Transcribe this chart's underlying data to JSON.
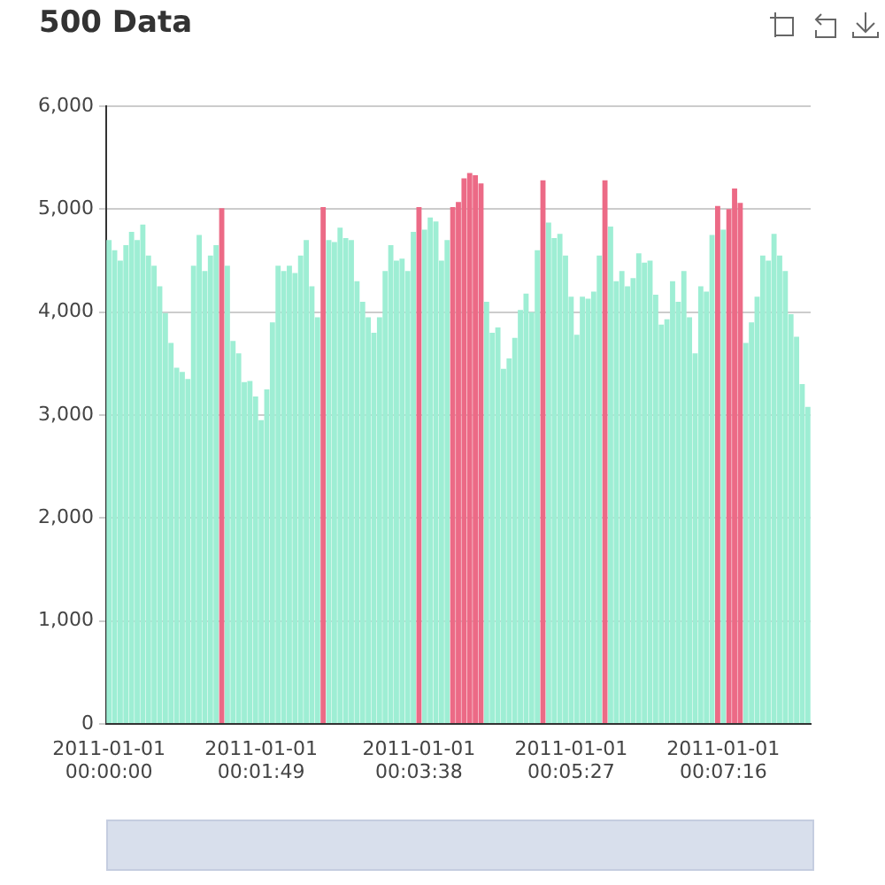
{
  "chart_data": {
    "type": "bar",
    "title": "500 Data",
    "categories": [
      "2011-01-01\n00:00:00",
      null,
      null,
      null,
      null,
      null,
      null,
      null,
      null,
      null,
      null,
      null,
      null,
      null,
      null,
      null,
      null,
      null,
      null,
      null,
      null,
      null,
      null,
      null,
      null,
      null,
      null,
      "2011-01-01\n00:01:49",
      null,
      null,
      null,
      null,
      null,
      null,
      null,
      null,
      null,
      null,
      null,
      null,
      null,
      null,
      null,
      null,
      null,
      null,
      null,
      null,
      null,
      null,
      null,
      null,
      null,
      null,
      null,
      "2011-01-01\n00:03:38",
      null,
      null,
      null,
      null,
      null,
      null,
      null,
      null,
      null,
      null,
      null,
      null,
      null,
      null,
      null,
      null,
      null,
      null,
      null,
      null,
      null,
      null,
      null,
      null,
      null,
      null,
      "2011-01-01\n00:05:27",
      null,
      null,
      null,
      null,
      null,
      null,
      null,
      null,
      null,
      null,
      null,
      null,
      null,
      null,
      null,
      null,
      null,
      null,
      null,
      null,
      null,
      null,
      null,
      null,
      null,
      null,
      "2011-01-01\n00:07:16",
      null,
      null,
      null,
      null,
      null,
      null,
      null,
      null,
      null,
      null,
      null,
      null,
      null,
      null,
      null
    ],
    "values": [
      4700,
      4600,
      4500,
      4650,
      4780,
      4700,
      4850,
      4550,
      4450,
      4250,
      3990,
      3700,
      3460,
      3420,
      3350,
      4450,
      4750,
      4400,
      4550,
      4650,
      5010,
      4450,
      3720,
      3600,
      3320,
      3330,
      3180,
      2950,
      3250,
      3900,
      4450,
      4400,
      4450,
      4380,
      4550,
      4700,
      4250,
      3950,
      5020,
      4700,
      4680,
      4820,
      4720,
      4700,
      4300,
      4100,
      3950,
      3800,
      3950,
      4400,
      4650,
      4500,
      4520,
      4400,
      4780,
      5020,
      4800,
      4920,
      4880,
      4500,
      4700,
      5020,
      5070,
      5300,
      5350,
      5330,
      5250,
      4100,
      3800,
      3850,
      3450,
      3550,
      3750,
      4020,
      4180,
      4000,
      4600,
      5280,
      4870,
      4720,
      4760,
      4550,
      4150,
      3780,
      4150,
      4130,
      4200,
      4550,
      5280,
      4830,
      4300,
      4400,
      4250,
      4330,
      4570,
      4480,
      4500,
      4170,
      3880,
      3930,
      4300,
      4100,
      4400,
      3950,
      3600,
      4250,
      4200,
      4750,
      5030,
      4800,
      5000,
      5200,
      5060,
      3700,
      3900,
      4150,
      4550,
      4500,
      4760,
      4550,
      4400,
      3980,
      3760,
      3300,
      3080
    ],
    "colors": [
      "#9eeed4",
      "#9eeed4",
      "#9eeed4",
      "#9eeed4",
      "#9eeed4",
      "#9eeed4",
      "#9eeed4",
      "#9eeed4",
      "#9eeed4",
      "#9eeed4",
      "#9eeed4",
      "#9eeed4",
      "#9eeed4",
      "#9eeed4",
      "#9eeed4",
      "#9eeed4",
      "#9eeed4",
      "#9eeed4",
      "#9eeed4",
      "#9eeed4",
      "#ec6a86",
      "#9eeed4",
      "#9eeed4",
      "#9eeed4",
      "#9eeed4",
      "#9eeed4",
      "#9eeed4",
      "#9eeed4",
      "#9eeed4",
      "#9eeed4",
      "#9eeed4",
      "#9eeed4",
      "#9eeed4",
      "#9eeed4",
      "#9eeed4",
      "#9eeed4",
      "#9eeed4",
      "#9eeed4",
      "#ec6a86",
      "#9eeed4",
      "#9eeed4",
      "#9eeed4",
      "#9eeed4",
      "#9eeed4",
      "#9eeed4",
      "#9eeed4",
      "#9eeed4",
      "#9eeed4",
      "#9eeed4",
      "#9eeed4",
      "#9eeed4",
      "#9eeed4",
      "#9eeed4",
      "#9eeed4",
      "#9eeed4",
      "#ec6a86",
      "#9eeed4",
      "#9eeed4",
      "#9eeed4",
      "#9eeed4",
      "#9eeed4",
      "#ec6a86",
      "#ec6a86",
      "#ec6a86",
      "#ec6a86",
      "#ec6a86",
      "#ec6a86",
      "#9eeed4",
      "#9eeed4",
      "#9eeed4",
      "#9eeed4",
      "#9eeed4",
      "#9eeed4",
      "#9eeed4",
      "#9eeed4",
      "#9eeed4",
      "#9eeed4",
      "#ec6a86",
      "#9eeed4",
      "#9eeed4",
      "#9eeed4",
      "#9eeed4",
      "#9eeed4",
      "#9eeed4",
      "#9eeed4",
      "#9eeed4",
      "#9eeed4",
      "#9eeed4",
      "#ec6a86",
      "#9eeed4",
      "#9eeed4",
      "#9eeed4",
      "#9eeed4",
      "#9eeed4",
      "#9eeed4",
      "#9eeed4",
      "#9eeed4",
      "#9eeed4",
      "#9eeed4",
      "#9eeed4",
      "#9eeed4",
      "#9eeed4",
      "#9eeed4",
      "#9eeed4",
      "#9eeed4",
      "#9eeed4",
      "#9eeed4",
      "#9eeed4",
      "#ec6a86",
      "#9eeed4",
      "#ec6a86",
      "#ec6a86",
      "#ec6a86",
      "#9eeed4",
      "#9eeed4",
      "#9eeed4",
      "#9eeed4",
      "#9eeed4",
      "#9eeed4",
      "#9eeed4",
      "#9eeed4",
      "#9eeed4",
      "#9eeed4",
      "#9eeed4",
      "#9eeed4"
    ],
    "ylim": [
      0,
      6000
    ],
    "yticks": [
      0,
      {
        "value": 1000,
        "label": "1,000"
      },
      {
        "value": 2000,
        "label": "2,000"
      },
      {
        "value": 3000,
        "label": "3,000"
      },
      {
        "value": 4000,
        "label": "4,000"
      },
      {
        "value": 5000,
        "label": "5,000"
      },
      {
        "value": 6000,
        "label": "6,000"
      }
    ],
    "grid": "y"
  }
}
